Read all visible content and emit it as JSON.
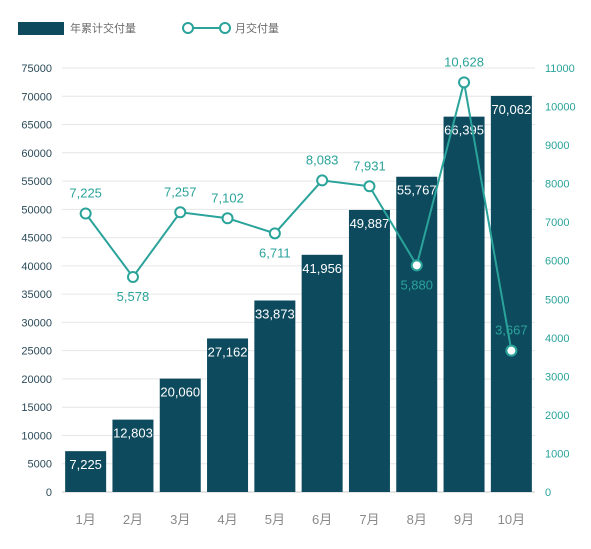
{
  "chart_data": {
    "type": "bar+line",
    "categories": [
      "1月",
      "2月",
      "3月",
      "4月",
      "5月",
      "6月",
      "7月",
      "8月",
      "9月",
      "10月"
    ],
    "series": [
      {
        "name": "年累计交付量",
        "type": "bar",
        "axis": "left",
        "values": [
          7225,
          12803,
          20060,
          27162,
          33873,
          41956,
          49887,
          55767,
          66395,
          70062
        ],
        "labels": [
          "7,225",
          "12,803",
          "20,060",
          "27,162",
          "33,873",
          "41,956",
          "49,887",
          "55,767",
          "66,395",
          "70,062"
        ],
        "color": "#0d4a5e"
      },
      {
        "name": "月交付量",
        "type": "line",
        "axis": "right",
        "values": [
          7225,
          5578,
          7257,
          7102,
          6711,
          8083,
          7931,
          5880,
          10628,
          3667
        ],
        "labels": [
          "7,225",
          "5,578",
          "7,257",
          "7,102",
          "6,711",
          "8,083",
          "7,931",
          "5,880",
          "10,628",
          "3,667"
        ],
        "color": "#2aa39a"
      }
    ],
    "left_axis": {
      "ylim": [
        0,
        75000
      ],
      "ticks": [
        "0",
        "5000",
        "10000",
        "15000",
        "20000",
        "25000",
        "30000",
        "35000",
        "40000",
        "45000",
        "50000",
        "55000",
        "60000",
        "65000",
        "70000",
        "75000"
      ]
    },
    "right_axis": {
      "ylim": [
        0,
        11000
      ],
      "ticks": [
        "0",
        "1000",
        "2000",
        "3000",
        "4000",
        "5000",
        "6000",
        "7000",
        "8000",
        "9000",
        "10000",
        "11000"
      ]
    },
    "grid": true,
    "legend": "top-left"
  }
}
